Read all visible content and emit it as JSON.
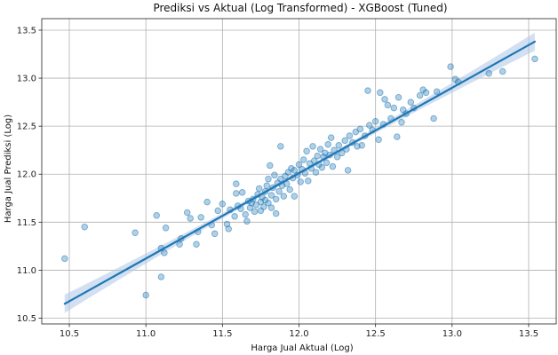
{
  "chart_data": {
    "type": "scatter",
    "title": "Prediksi vs Aktual (Log Transformed) - XGBoost (Tuned)",
    "xlabel": "Harga Jual Aktual (Log)",
    "ylabel": "Harga Jual Prediksi (Log)",
    "xlim": [
      10.32,
      13.68
    ],
    "ylim": [
      10.44,
      13.62
    ],
    "xticks": [
      "10.5",
      "11.0",
      "11.5",
      "12.0",
      "12.5",
      "13.0",
      "13.5"
    ],
    "yticks": [
      "10.5",
      "11.0",
      "11.5",
      "12.0",
      "12.5",
      "13.0",
      "13.5"
    ],
    "grid": true,
    "colors": {
      "points": "#1f77b4",
      "line": "#1f77b4",
      "band": "#aec7e8"
    },
    "regression": {
      "x_start": 10.47,
      "y_start": 10.65,
      "x_end": 13.54,
      "y_end": 13.38
    },
    "points": [
      {
        "x": 10.47,
        "y": 11.12
      },
      {
        "x": 10.6,
        "y": 11.45
      },
      {
        "x": 10.93,
        "y": 11.39
      },
      {
        "x": 11.0,
        "y": 10.74
      },
      {
        "x": 11.07,
        "y": 11.57
      },
      {
        "x": 11.1,
        "y": 11.23
      },
      {
        "x": 11.1,
        "y": 10.93
      },
      {
        "x": 11.12,
        "y": 11.18
      },
      {
        "x": 11.13,
        "y": 11.44
      },
      {
        "x": 11.22,
        "y": 11.27
      },
      {
        "x": 11.23,
        "y": 11.33
      },
      {
        "x": 11.27,
        "y": 11.6
      },
      {
        "x": 11.29,
        "y": 11.54
      },
      {
        "x": 11.33,
        "y": 11.27
      },
      {
        "x": 11.34,
        "y": 11.4
      },
      {
        "x": 11.36,
        "y": 11.55
      },
      {
        "x": 11.4,
        "y": 11.71
      },
      {
        "x": 11.43,
        "y": 11.47
      },
      {
        "x": 11.45,
        "y": 11.38
      },
      {
        "x": 11.47,
        "y": 11.62
      },
      {
        "x": 11.5,
        "y": 11.69
      },
      {
        "x": 11.53,
        "y": 11.48
      },
      {
        "x": 11.54,
        "y": 11.43
      },
      {
        "x": 11.55,
        "y": 11.63
      },
      {
        "x": 11.58,
        "y": 11.56
      },
      {
        "x": 11.59,
        "y": 11.9
      },
      {
        "x": 11.59,
        "y": 11.8
      },
      {
        "x": 11.6,
        "y": 11.67
      },
      {
        "x": 11.62,
        "y": 11.64
      },
      {
        "x": 11.63,
        "y": 11.81
      },
      {
        "x": 11.65,
        "y": 11.58
      },
      {
        "x": 11.66,
        "y": 11.51
      },
      {
        "x": 11.67,
        "y": 11.72
      },
      {
        "x": 11.68,
        "y": 11.65
      },
      {
        "x": 11.69,
        "y": 11.7
      },
      {
        "x": 11.7,
        "y": 11.74
      },
      {
        "x": 11.71,
        "y": 11.61
      },
      {
        "x": 11.72,
        "y": 11.68
      },
      {
        "x": 11.73,
        "y": 11.79
      },
      {
        "x": 11.74,
        "y": 11.85
      },
      {
        "x": 11.75,
        "y": 11.71
      },
      {
        "x": 11.75,
        "y": 11.62
      },
      {
        "x": 11.76,
        "y": 11.76
      },
      {
        "x": 11.77,
        "y": 11.66
      },
      {
        "x": 11.78,
        "y": 11.82
      },
      {
        "x": 11.78,
        "y": 11.73
      },
      {
        "x": 11.79,
        "y": 11.88
      },
      {
        "x": 11.8,
        "y": 11.95
      },
      {
        "x": 11.8,
        "y": 11.7
      },
      {
        "x": 11.81,
        "y": 12.09
      },
      {
        "x": 11.82,
        "y": 11.78
      },
      {
        "x": 11.82,
        "y": 11.65
      },
      {
        "x": 11.83,
        "y": 11.86
      },
      {
        "x": 11.84,
        "y": 11.99
      },
      {
        "x": 11.85,
        "y": 11.74
      },
      {
        "x": 11.85,
        "y": 11.59
      },
      {
        "x": 11.86,
        "y": 11.91
      },
      {
        "x": 11.87,
        "y": 11.82
      },
      {
        "x": 11.88,
        "y": 12.29
      },
      {
        "x": 11.88,
        "y": 11.95
      },
      {
        "x": 11.89,
        "y": 11.88
      },
      {
        "x": 11.9,
        "y": 11.77
      },
      {
        "x": 11.91,
        "y": 11.98
      },
      {
        "x": 11.92,
        "y": 11.9
      },
      {
        "x": 11.93,
        "y": 12.02
      },
      {
        "x": 11.94,
        "y": 11.84
      },
      {
        "x": 11.95,
        "y": 12.06
      },
      {
        "x": 11.96,
        "y": 11.96
      },
      {
        "x": 11.97,
        "y": 12.04
      },
      {
        "x": 11.97,
        "y": 11.77
      },
      {
        "x": 11.99,
        "y": 11.99
      },
      {
        "x": 12.0,
        "y": 12.1
      },
      {
        "x": 12.01,
        "y": 11.92
      },
      {
        "x": 12.02,
        "y": 12.05
      },
      {
        "x": 12.03,
        "y": 12.15
      },
      {
        "x": 12.04,
        "y": 12.01
      },
      {
        "x": 12.05,
        "y": 12.24
      },
      {
        "x": 12.06,
        "y": 11.93
      },
      {
        "x": 12.07,
        "y": 12.11
      },
      {
        "x": 12.08,
        "y": 12.06
      },
      {
        "x": 12.09,
        "y": 12.29
      },
      {
        "x": 12.1,
        "y": 12.14
      },
      {
        "x": 12.11,
        "y": 12.02
      },
      {
        "x": 12.12,
        "y": 12.19
      },
      {
        "x": 12.13,
        "y": 12.1
      },
      {
        "x": 12.14,
        "y": 12.26
      },
      {
        "x": 12.15,
        "y": 12.07
      },
      {
        "x": 12.16,
        "y": 12.18
      },
      {
        "x": 12.17,
        "y": 12.22
      },
      {
        "x": 12.18,
        "y": 12.12
      },
      {
        "x": 12.19,
        "y": 12.31
      },
      {
        "x": 12.2,
        "y": 12.2
      },
      {
        "x": 12.21,
        "y": 12.38
      },
      {
        "x": 12.22,
        "y": 12.08
      },
      {
        "x": 12.23,
        "y": 12.25
      },
      {
        "x": 12.25,
        "y": 12.18
      },
      {
        "x": 12.26,
        "y": 12.3
      },
      {
        "x": 12.28,
        "y": 12.22
      },
      {
        "x": 12.3,
        "y": 12.35
      },
      {
        "x": 12.31,
        "y": 12.26
      },
      {
        "x": 12.32,
        "y": 12.04
      },
      {
        "x": 12.33,
        "y": 12.4
      },
      {
        "x": 12.35,
        "y": 12.33
      },
      {
        "x": 12.37,
        "y": 12.44
      },
      {
        "x": 12.38,
        "y": 12.29
      },
      {
        "x": 12.4,
        "y": 12.47
      },
      {
        "x": 12.41,
        "y": 12.3
      },
      {
        "x": 12.43,
        "y": 12.4
      },
      {
        "x": 12.45,
        "y": 12.87
      },
      {
        "x": 12.46,
        "y": 12.51
      },
      {
        "x": 12.48,
        "y": 12.46
      },
      {
        "x": 12.5,
        "y": 12.55
      },
      {
        "x": 12.52,
        "y": 12.36
      },
      {
        "x": 12.53,
        "y": 12.85
      },
      {
        "x": 12.55,
        "y": 12.52
      },
      {
        "x": 12.56,
        "y": 12.78
      },
      {
        "x": 12.58,
        "y": 12.72
      },
      {
        "x": 12.6,
        "y": 12.58
      },
      {
        "x": 12.62,
        "y": 12.69
      },
      {
        "x": 12.64,
        "y": 12.39
      },
      {
        "x": 12.65,
        "y": 12.8
      },
      {
        "x": 12.67,
        "y": 12.54
      },
      {
        "x": 12.68,
        "y": 12.67
      },
      {
        "x": 12.7,
        "y": 12.63
      },
      {
        "x": 12.73,
        "y": 12.75
      },
      {
        "x": 12.75,
        "y": 12.69
      },
      {
        "x": 12.79,
        "y": 12.82
      },
      {
        "x": 12.81,
        "y": 12.88
      },
      {
        "x": 12.83,
        "y": 12.85
      },
      {
        "x": 12.88,
        "y": 12.58
      },
      {
        "x": 12.9,
        "y": 12.86
      },
      {
        "x": 12.99,
        "y": 13.12
      },
      {
        "x": 13.02,
        "y": 12.99
      },
      {
        "x": 13.04,
        "y": 12.96
      },
      {
        "x": 13.24,
        "y": 13.05
      },
      {
        "x": 13.33,
        "y": 13.07
      },
      {
        "x": 13.54,
        "y": 13.2
      }
    ]
  }
}
